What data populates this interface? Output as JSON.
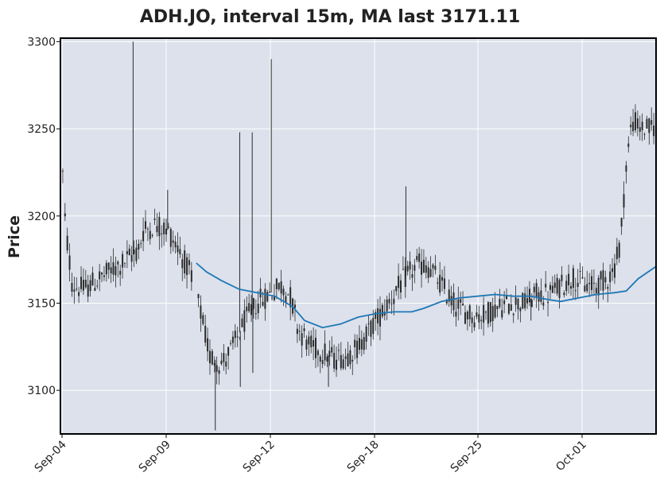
{
  "chart_data": {
    "type": "candlestick",
    "title": "ADH.JO, interval 15m, MA last 3171.11",
    "xlabel": "",
    "ylabel": "Price",
    "ylim": [
      3075,
      3302
    ],
    "yticks": [
      3100,
      3150,
      3200,
      3250,
      3300
    ],
    "xticks": [
      "Sep-04",
      "Sep-09",
      "Sep-12",
      "Sep-18",
      "Sep-25",
      "Oct-01"
    ],
    "grid": true,
    "colors": {
      "plot_background": "#dce1ec",
      "grid": "#ffffff",
      "candle": "#2b2b2b",
      "ma_line": "#1f77b4"
    },
    "ma_last": 3171.11,
    "price_path": [
      [
        0.0,
        3250
      ],
      [
        0.008,
        3195
      ],
      [
        0.02,
        3160
      ],
      [
        0.04,
        3158
      ],
      [
        0.07,
        3165
      ],
      [
        0.1,
        3172
      ],
      [
        0.13,
        3180
      ],
      [
        0.14,
        3192
      ],
      [
        0.16,
        3195
      ],
      [
        0.18,
        3192
      ],
      [
        0.2,
        3180
      ],
      [
        0.22,
        3165
      ],
      [
        0.235,
        3145
      ],
      [
        0.25,
        3120
      ],
      [
        0.27,
        3115
      ],
      [
        0.29,
        3125
      ],
      [
        0.31,
        3140
      ],
      [
        0.33,
        3150
      ],
      [
        0.35,
        3155
      ],
      [
        0.37,
        3160
      ],
      [
        0.385,
        3155
      ],
      [
        0.4,
        3135
      ],
      [
        0.42,
        3125
      ],
      [
        0.44,
        3122
      ],
      [
        0.46,
        3118
      ],
      [
        0.48,
        3120
      ],
      [
        0.5,
        3125
      ],
      [
        0.52,
        3135
      ],
      [
        0.54,
        3145
      ],
      [
        0.56,
        3155
      ],
      [
        0.58,
        3165
      ],
      [
        0.6,
        3172
      ],
      [
        0.62,
        3170
      ],
      [
        0.64,
        3160
      ],
      [
        0.66,
        3150
      ],
      [
        0.68,
        3145
      ],
      [
        0.7,
        3142
      ],
      [
        0.72,
        3145
      ],
      [
        0.74,
        3148
      ],
      [
        0.76,
        3150
      ],
      [
        0.78,
        3150
      ],
      [
        0.8,
        3155
      ],
      [
        0.82,
        3155
      ],
      [
        0.84,
        3160
      ],
      [
        0.86,
        3165
      ],
      [
        0.88,
        3160
      ],
      [
        0.9,
        3160
      ],
      [
        0.92,
        3165
      ],
      [
        0.93,
        3170
      ],
      [
        0.94,
        3185
      ],
      [
        0.95,
        3230
      ],
      [
        0.96,
        3255
      ],
      [
        0.975,
        3250
      ],
      [
        0.99,
        3250
      ],
      [
        1.0,
        3252
      ]
    ],
    "spikes": [
      [
        0.122,
        3300
      ],
      [
        0.18,
        3215
      ],
      [
        0.301,
        3248
      ],
      [
        0.322,
        3248
      ],
      [
        0.354,
        3290
      ],
      [
        0.58,
        3217
      ],
      [
        0.79,
        3140
      ],
      [
        0.26,
        3077
      ],
      [
        0.302,
        3102
      ],
      [
        0.323,
        3110
      ],
      [
        0.45,
        3102
      ]
    ],
    "ma_series": [
      [
        0.228,
        3173
      ],
      [
        0.245,
        3168
      ],
      [
        0.27,
        3163
      ],
      [
        0.3,
        3158
      ],
      [
        0.33,
        3156
      ],
      [
        0.36,
        3154
      ],
      [
        0.39,
        3148
      ],
      [
        0.41,
        3140
      ],
      [
        0.44,
        3136
      ],
      [
        0.47,
        3138
      ],
      [
        0.5,
        3142
      ],
      [
        0.53,
        3144
      ],
      [
        0.56,
        3145
      ],
      [
        0.59,
        3145
      ],
      [
        0.61,
        3147
      ],
      [
        0.64,
        3151
      ],
      [
        0.67,
        3153
      ],
      [
        0.7,
        3154
      ],
      [
        0.73,
        3155
      ],
      [
        0.76,
        3154
      ],
      [
        0.79,
        3154
      ],
      [
        0.82,
        3152
      ],
      [
        0.84,
        3151
      ],
      [
        0.87,
        3153
      ],
      [
        0.9,
        3155
      ],
      [
        0.93,
        3156
      ],
      [
        0.95,
        3157
      ],
      [
        0.97,
        3164
      ],
      [
        1.0,
        3171.11
      ]
    ]
  }
}
